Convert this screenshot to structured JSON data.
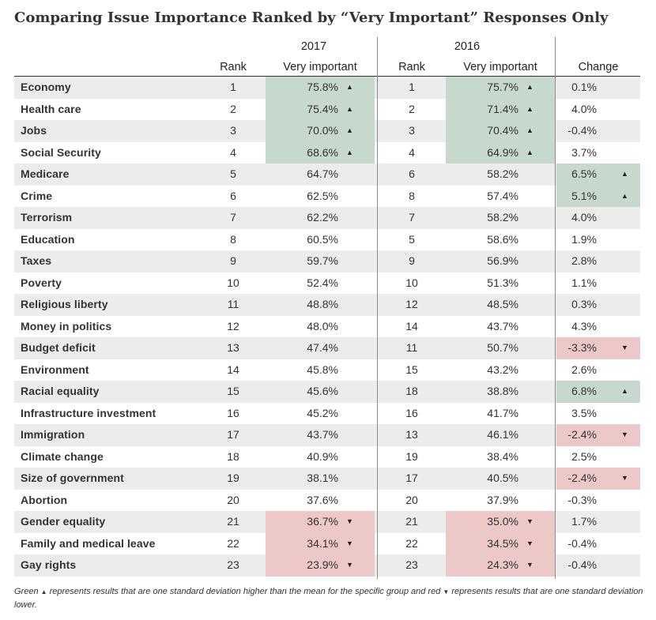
{
  "title": "Comparing Issue Importance Ranked by “Very Important” Responses Only",
  "headers": {
    "year_2017": "2017",
    "year_2016": "2016",
    "rank": "Rank",
    "very_important": "Very important",
    "change": "Change"
  },
  "colors": {
    "up": "#c7d8cc",
    "down": "#ecc8c8",
    "shade": "#ececec"
  },
  "footnote": {
    "part1": "Green",
    "part2": "represents results that are one standard deviation higher than the mean for the specific group and red",
    "part3": "represents results that are one standard deviation lower.",
    "up_glyph": "▲",
    "down_glyph": "▼"
  },
  "chart_data": {
    "type": "table",
    "columns": [
      "",
      "Rank",
      "Very important",
      "Rank",
      "Very important",
      "Change"
    ],
    "rows": [
      {
        "issue": "Economy",
        "rank_2017": "1",
        "vi_2017": "75.8%",
        "vi_2017_flag": "up",
        "rank_2016": "1",
        "vi_2016": "75.7%",
        "vi_2016_flag": "up",
        "change": "0.1%",
        "change_flag": ""
      },
      {
        "issue": "Health care",
        "rank_2017": "2",
        "vi_2017": "75.4%",
        "vi_2017_flag": "up",
        "rank_2016": "2",
        "vi_2016": "71.4%",
        "vi_2016_flag": "up",
        "change": "4.0%",
        "change_flag": ""
      },
      {
        "issue": "Jobs",
        "rank_2017": "3",
        "vi_2017": "70.0%",
        "vi_2017_flag": "up",
        "rank_2016": "3",
        "vi_2016": "70.4%",
        "vi_2016_flag": "up",
        "change": "-0.4%",
        "change_flag": ""
      },
      {
        "issue": "Social Security",
        "rank_2017": "4",
        "vi_2017": "68.6%",
        "vi_2017_flag": "up",
        "rank_2016": "4",
        "vi_2016": "64.9%",
        "vi_2016_flag": "up",
        "change": "3.7%",
        "change_flag": ""
      },
      {
        "issue": "Medicare",
        "rank_2017": "5",
        "vi_2017": "64.7%",
        "vi_2017_flag": "",
        "rank_2016": "6",
        "vi_2016": "58.2%",
        "vi_2016_flag": "",
        "change": "6.5%",
        "change_flag": "up"
      },
      {
        "issue": "Crime",
        "rank_2017": "6",
        "vi_2017": "62.5%",
        "vi_2017_flag": "",
        "rank_2016": "8",
        "vi_2016": "57.4%",
        "vi_2016_flag": "",
        "change": "5.1%",
        "change_flag": "up"
      },
      {
        "issue": "Terrorism",
        "rank_2017": "7",
        "vi_2017": "62.2%",
        "vi_2017_flag": "",
        "rank_2016": "7",
        "vi_2016": "58.2%",
        "vi_2016_flag": "",
        "change": "4.0%",
        "change_flag": ""
      },
      {
        "issue": "Education",
        "rank_2017": "8",
        "vi_2017": "60.5%",
        "vi_2017_flag": "",
        "rank_2016": "5",
        "vi_2016": "58.6%",
        "vi_2016_flag": "",
        "change": "1.9%",
        "change_flag": ""
      },
      {
        "issue": "Taxes",
        "rank_2017": "9",
        "vi_2017": "59.7%",
        "vi_2017_flag": "",
        "rank_2016": "9",
        "vi_2016": "56.9%",
        "vi_2016_flag": "",
        "change": "2.8%",
        "change_flag": ""
      },
      {
        "issue": "Poverty",
        "rank_2017": "10",
        "vi_2017": "52.4%",
        "vi_2017_flag": "",
        "rank_2016": "10",
        "vi_2016": "51.3%",
        "vi_2016_flag": "",
        "change": "1.1%",
        "change_flag": ""
      },
      {
        "issue": "Religious liberty",
        "rank_2017": "11",
        "vi_2017": "48.8%",
        "vi_2017_flag": "",
        "rank_2016": "12",
        "vi_2016": "48.5%",
        "vi_2016_flag": "",
        "change": "0.3%",
        "change_flag": ""
      },
      {
        "issue": "Money in politics",
        "rank_2017": "12",
        "vi_2017": "48.0%",
        "vi_2017_flag": "",
        "rank_2016": "14",
        "vi_2016": "43.7%",
        "vi_2016_flag": "",
        "change": "4.3%",
        "change_flag": ""
      },
      {
        "issue": "Budget deficit",
        "rank_2017": "13",
        "vi_2017": "47.4%",
        "vi_2017_flag": "",
        "rank_2016": "11",
        "vi_2016": "50.7%",
        "vi_2016_flag": "",
        "change": "-3.3%",
        "change_flag": "down"
      },
      {
        "issue": "Environment",
        "rank_2017": "14",
        "vi_2017": "45.8%",
        "vi_2017_flag": "",
        "rank_2016": "15",
        "vi_2016": "43.2%",
        "vi_2016_flag": "",
        "change": "2.6%",
        "change_flag": ""
      },
      {
        "issue": "Racial equality",
        "rank_2017": "15",
        "vi_2017": "45.6%",
        "vi_2017_flag": "",
        "rank_2016": "18",
        "vi_2016": "38.8%",
        "vi_2016_flag": "",
        "change": "6.8%",
        "change_flag": "up"
      },
      {
        "issue": "Infrastructure investment",
        "rank_2017": "16",
        "vi_2017": "45.2%",
        "vi_2017_flag": "",
        "rank_2016": "16",
        "vi_2016": "41.7%",
        "vi_2016_flag": "",
        "change": "3.5%",
        "change_flag": ""
      },
      {
        "issue": "Immigration",
        "rank_2017": "17",
        "vi_2017": "43.7%",
        "vi_2017_flag": "",
        "rank_2016": "13",
        "vi_2016": "46.1%",
        "vi_2016_flag": "",
        "change": "-2.4%",
        "change_flag": "down"
      },
      {
        "issue": "Climate change",
        "rank_2017": "18",
        "vi_2017": "40.9%",
        "vi_2017_flag": "",
        "rank_2016": "19",
        "vi_2016": "38.4%",
        "vi_2016_flag": "",
        "change": "2.5%",
        "change_flag": ""
      },
      {
        "issue": "Size of government",
        "rank_2017": "19",
        "vi_2017": "38.1%",
        "vi_2017_flag": "",
        "rank_2016": "17",
        "vi_2016": "40.5%",
        "vi_2016_flag": "",
        "change": "-2.4%",
        "change_flag": "down"
      },
      {
        "issue": "Abortion",
        "rank_2017": "20",
        "vi_2017": "37.6%",
        "vi_2017_flag": "",
        "rank_2016": "20",
        "vi_2016": "37.9%",
        "vi_2016_flag": "",
        "change": "-0.3%",
        "change_flag": ""
      },
      {
        "issue": "Gender equality",
        "rank_2017": "21",
        "vi_2017": "36.7%",
        "vi_2017_flag": "down",
        "rank_2016": "21",
        "vi_2016": "35.0%",
        "vi_2016_flag": "down",
        "change": "1.7%",
        "change_flag": ""
      },
      {
        "issue": "Family and medical leave",
        "rank_2017": "22",
        "vi_2017": "34.1%",
        "vi_2017_flag": "down",
        "rank_2016": "22",
        "vi_2016": "34.5%",
        "vi_2016_flag": "down",
        "change": "-0.4%",
        "change_flag": ""
      },
      {
        "issue": "Gay rights",
        "rank_2017": "23",
        "vi_2017": "23.9%",
        "vi_2017_flag": "down",
        "rank_2016": "23",
        "vi_2016": "24.3%",
        "vi_2016_flag": "down",
        "change": "-0.4%",
        "change_flag": ""
      }
    ]
  }
}
